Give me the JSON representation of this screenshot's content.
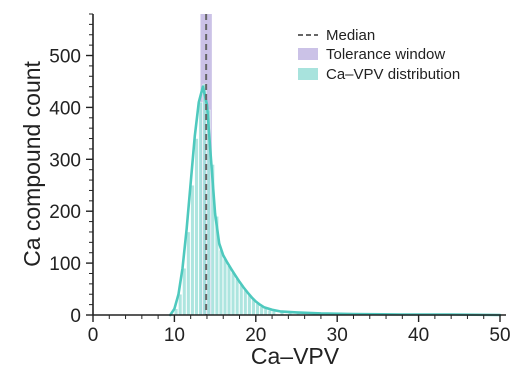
{
  "chart_data": {
    "type": "histogram",
    "xlabel": "Ca–VPV",
    "ylabel": "Ca compound count",
    "xlim": [
      0,
      50
    ],
    "ylim": [
      0,
      580
    ],
    "xticks": [
      "0",
      "10",
      "20",
      "30",
      "40",
      "50"
    ],
    "yticks": [
      "0",
      "100",
      "200",
      "300",
      "400",
      "500"
    ],
    "bin_width": 0.5,
    "bins": [
      {
        "x": 10.0,
        "y": 12
      },
      {
        "x": 10.5,
        "y": 40
      },
      {
        "x": 11.0,
        "y": 90
      },
      {
        "x": 11.5,
        "y": 160
      },
      {
        "x": 12.0,
        "y": 250
      },
      {
        "x": 12.5,
        "y": 340
      },
      {
        "x": 13.0,
        "y": 410
      },
      {
        "x": 13.5,
        "y": 445
      },
      {
        "x": 14.0,
        "y": 395
      },
      {
        "x": 14.5,
        "y": 290
      },
      {
        "x": 15.0,
        "y": 190
      },
      {
        "x": 15.5,
        "y": 125
      },
      {
        "x": 16.0,
        "y": 108
      },
      {
        "x": 16.5,
        "y": 95
      },
      {
        "x": 17.0,
        "y": 82
      },
      {
        "x": 17.5,
        "y": 70
      },
      {
        "x": 18.0,
        "y": 58
      },
      {
        "x": 18.5,
        "y": 48
      },
      {
        "x": 19.0,
        "y": 38
      },
      {
        "x": 19.5,
        "y": 30
      },
      {
        "x": 20.0,
        "y": 22
      },
      {
        "x": 20.5,
        "y": 16
      },
      {
        "x": 21.0,
        "y": 12
      },
      {
        "x": 21.5,
        "y": 9
      },
      {
        "x": 22.0,
        "y": 7
      },
      {
        "x": 23.0,
        "y": 5
      },
      {
        "x": 24.0,
        "y": 4
      },
      {
        "x": 25.0,
        "y": 3
      },
      {
        "x": 27.0,
        "y": 2
      },
      {
        "x": 29.0,
        "y": 2
      },
      {
        "x": 32.0,
        "y": 1
      },
      {
        "x": 36.0,
        "y": 1
      },
      {
        "x": 41.0,
        "y": 1
      },
      {
        "x": 48.0,
        "y": 1
      }
    ],
    "kde": [
      [
        9.5,
        0
      ],
      [
        10,
        12
      ],
      [
        10.5,
        40
      ],
      [
        11,
        90
      ],
      [
        11.5,
        165
      ],
      [
        12,
        255
      ],
      [
        12.5,
        345
      ],
      [
        13,
        410
      ],
      [
        13.5,
        440
      ],
      [
        14,
        405
      ],
      [
        14.5,
        300
      ],
      [
        15,
        195
      ],
      [
        15.5,
        138
      ],
      [
        16,
        115
      ],
      [
        16.5,
        101
      ],
      [
        17,
        88
      ],
      [
        17.5,
        76
      ],
      [
        18,
        64
      ],
      [
        18.5,
        53
      ],
      [
        19,
        43
      ],
      [
        19.5,
        34
      ],
      [
        20,
        26
      ],
      [
        20.5,
        20
      ],
      [
        21,
        15
      ],
      [
        22,
        10
      ],
      [
        23,
        7
      ],
      [
        25,
        5
      ],
      [
        28,
        3
      ],
      [
        32,
        2
      ],
      [
        38,
        1
      ],
      [
        44,
        1
      ],
      [
        50,
        0
      ]
    ],
    "median": 13.9,
    "tolerance_window": [
      13.2,
      14.6
    ],
    "legend": {
      "position": "top-right",
      "items": [
        {
          "key": "median",
          "label": "Median"
        },
        {
          "key": "tolerance",
          "label": "Tolerance window"
        },
        {
          "key": "dist",
          "label": "Ca–VPV distribution"
        }
      ]
    },
    "colors": {
      "median": "#666666",
      "tolerance": "#b9aedf",
      "dist_line": "#4ec9be",
      "dist_fill": "#9fe0d9",
      "axis": "#222222"
    },
    "grid": false
  }
}
